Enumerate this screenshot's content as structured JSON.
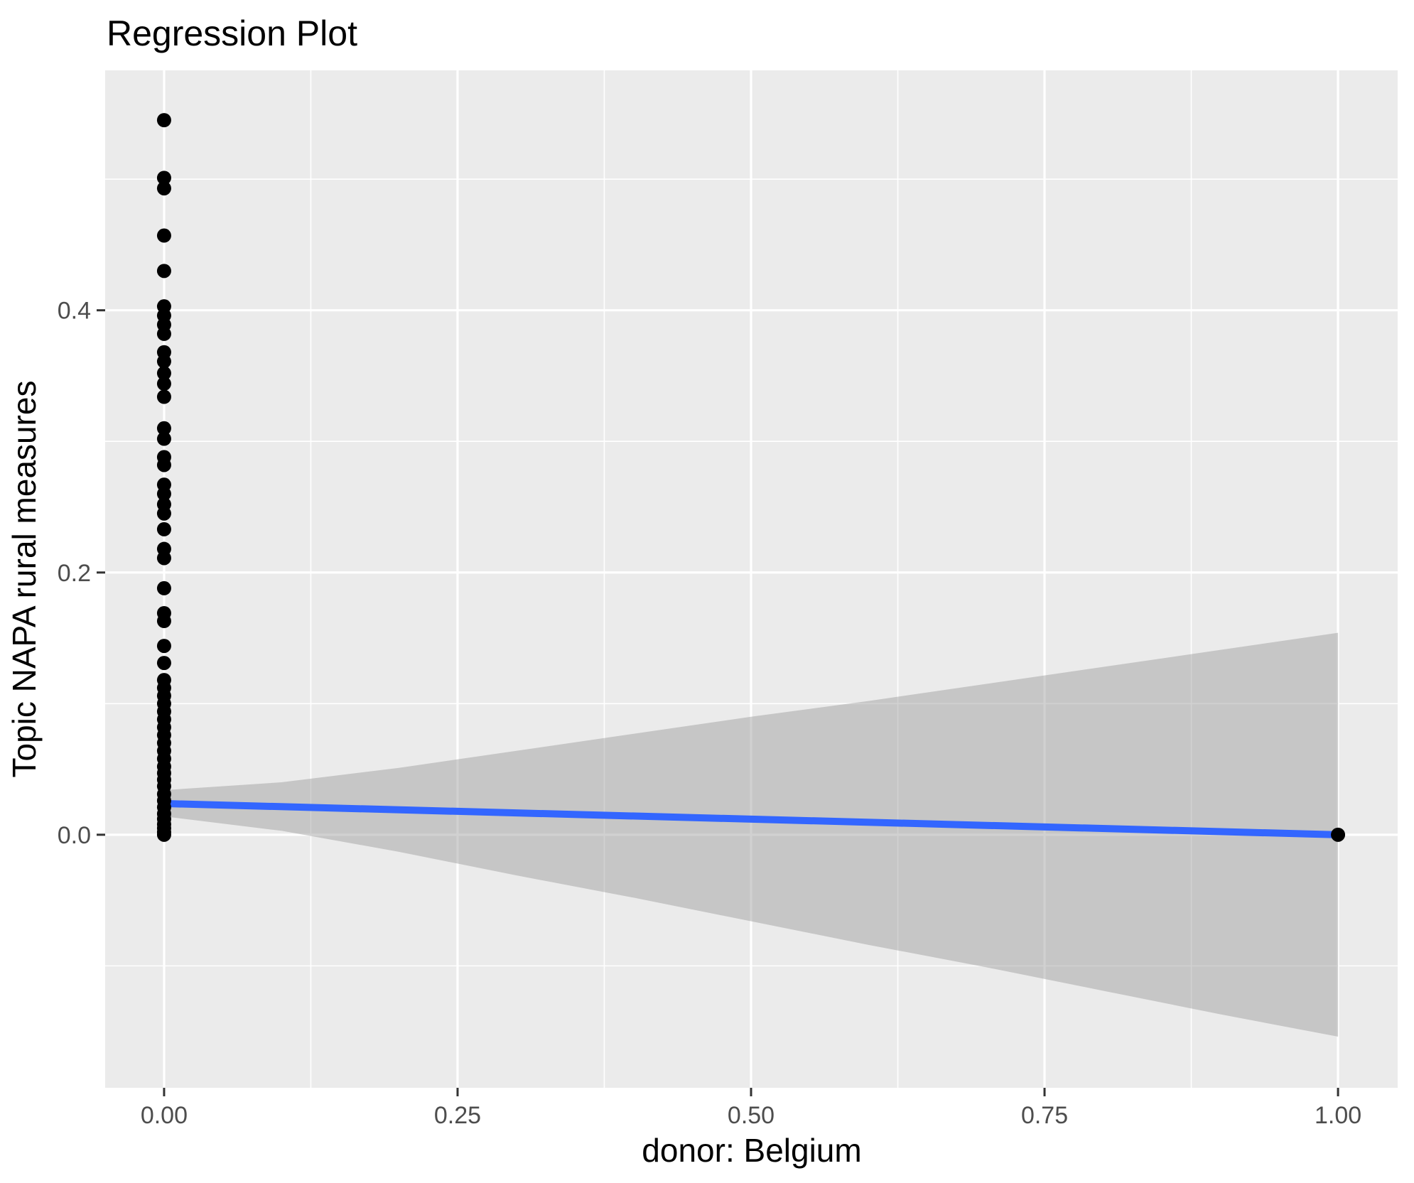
{
  "chart_data": {
    "type": "scatter",
    "title": "Regression Plot",
    "xlabel": "donor: Belgium",
    "ylabel": "Topic NAPA rural measures",
    "xlim": [
      -0.0502,
      1.0508
    ],
    "ylim": [
      -0.193,
      0.583
    ],
    "grid": "white major and minor gridlines on gray panel, legend none",
    "x_major_ticks": {
      "values": [
        0,
        0.25,
        0.5,
        0.75,
        1.0
      ],
      "labels": [
        "0.00",
        "0.25",
        "0.50",
        "0.75",
        "1.00"
      ]
    },
    "y_major_ticks": {
      "values": [
        0,
        0.2,
        0.4
      ],
      "labels": [
        "0.0",
        "0.2",
        "0.4"
      ]
    },
    "x_minor_ticks": [
      0.125,
      0.375,
      0.625,
      0.875
    ],
    "y_minor_ticks": [
      -0.1,
      0.1,
      0.3,
      0.5
    ],
    "colors": {
      "panel_background": "#EBEBEB",
      "gridline": "#FFFFFF",
      "point": "#000000",
      "fit_line": "#3366FF",
      "ribbon": "#999999",
      "ribbon_opacity": 0.45,
      "tick_mark": "#333333",
      "tick_text": "#4D4D4D"
    },
    "series": [
      {
        "name": "observations",
        "kind": "points",
        "point_radius": 10,
        "points": [
          [
            0,
            0.545
          ],
          [
            0,
            0.501
          ],
          [
            0,
            0.493
          ],
          [
            0,
            0.457
          ],
          [
            0,
            0.43
          ],
          [
            0,
            0.403
          ],
          [
            0,
            0.396
          ],
          [
            0,
            0.389
          ],
          [
            0,
            0.382
          ],
          [
            0,
            0.368
          ],
          [
            0,
            0.361
          ],
          [
            0,
            0.352
          ],
          [
            0,
            0.344
          ],
          [
            0,
            0.334
          ],
          [
            0,
            0.31
          ],
          [
            0,
            0.302
          ],
          [
            0,
            0.288
          ],
          [
            0,
            0.282
          ],
          [
            0,
            0.267
          ],
          [
            0,
            0.26
          ],
          [
            0,
            0.252
          ],
          [
            0,
            0.245
          ],
          [
            0,
            0.233
          ],
          [
            0,
            0.218
          ],
          [
            0,
            0.211
          ],
          [
            0,
            0.188
          ],
          [
            0,
            0.169
          ],
          [
            0,
            0.163
          ],
          [
            0,
            0.144
          ],
          [
            0,
            0.131
          ],
          [
            0,
            0.118
          ],
          [
            0,
            0.112
          ],
          [
            0,
            0.106
          ],
          [
            0,
            0.1
          ],
          [
            0,
            0.094
          ],
          [
            0,
            0.088
          ],
          [
            0,
            0.082
          ],
          [
            0,
            0.076
          ],
          [
            0,
            0.07
          ],
          [
            0,
            0.064
          ],
          [
            0,
            0.058
          ],
          [
            0,
            0.052
          ],
          [
            0,
            0.047
          ],
          [
            0,
            0.042
          ],
          [
            0,
            0.037
          ],
          [
            0,
            0.031
          ],
          [
            0,
            0.026
          ],
          [
            0,
            0.021
          ],
          [
            0,
            0.016
          ],
          [
            0,
            0.012
          ],
          [
            0,
            0.008
          ],
          [
            0,
            0.005
          ],
          [
            0,
            0.002
          ],
          [
            0,
            0.0
          ],
          [
            1,
            0.0
          ]
        ]
      },
      {
        "name": "ols-fit-line",
        "kind": "line",
        "line_width": 10,
        "x": [
          0,
          1
        ],
        "y": [
          0.0238,
          0.0
        ]
      },
      {
        "name": "confidence-band",
        "kind": "ribbon",
        "x": [
          0.0,
          0.1,
          0.2,
          0.3,
          0.4,
          0.5,
          0.6,
          0.7,
          0.8,
          0.9,
          1.0
        ],
        "upper": [
          0.034,
          0.04,
          0.051,
          0.064,
          0.077,
          0.09,
          0.102,
          0.115,
          0.128,
          0.141,
          0.154
        ],
        "lower": [
          0.014,
          0.003,
          -0.013,
          -0.031,
          -0.048,
          -0.066,
          -0.084,
          -0.101,
          -0.119,
          -0.137,
          -0.154
        ]
      }
    ]
  }
}
